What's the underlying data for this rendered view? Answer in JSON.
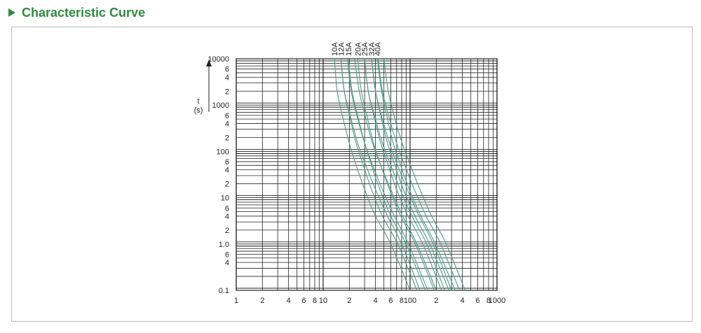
{
  "header": {
    "title": "Characteristic Curve"
  },
  "colors": {
    "accent": "#2e8b3e",
    "curve": "#4a9e86",
    "grid": "#222222"
  },
  "chart_data": {
    "type": "line",
    "xscale": "log",
    "yscale": "log",
    "xlim": [
      1,
      1000
    ],
    "ylim": [
      0.1,
      10000
    ],
    "ylabel": "t",
    "ylabel_unit": "(s)",
    "grid": true,
    "x_tick_labels": [
      {
        "v": 1,
        "t": "1"
      },
      {
        "v": 2,
        "t": "2"
      },
      {
        "v": 4,
        "t": "4"
      },
      {
        "v": 6,
        "t": "6"
      },
      {
        "v": 8,
        "t": "8"
      },
      {
        "v": 10,
        "t": "10"
      },
      {
        "v": 20,
        "t": "2"
      },
      {
        "v": 40,
        "t": "4"
      },
      {
        "v": 60,
        "t": "6"
      },
      {
        "v": 80,
        "t": "8"
      },
      {
        "v": 100,
        "t": "100"
      },
      {
        "v": 200,
        "t": "2"
      },
      {
        "v": 400,
        "t": "4"
      },
      {
        "v": 600,
        "t": "6"
      },
      {
        "v": 800,
        "t": "8"
      },
      {
        "v": 1000,
        "t": "1000"
      }
    ],
    "y_tick_labels": [
      {
        "v": 10000,
        "t": "10000"
      },
      {
        "v": 6000,
        "t": "6"
      },
      {
        "v": 4000,
        "t": "4"
      },
      {
        "v": 2000,
        "t": "2"
      },
      {
        "v": 1000,
        "t": "1000"
      },
      {
        "v": 600,
        "t": "6"
      },
      {
        "v": 400,
        "t": "4"
      },
      {
        "v": 200,
        "t": "2"
      },
      {
        "v": 100,
        "t": "100"
      },
      {
        "v": 60,
        "t": "6"
      },
      {
        "v": 40,
        "t": "4"
      },
      {
        "v": 20,
        "t": "2"
      },
      {
        "v": 10,
        "t": "10"
      },
      {
        "v": 6,
        "t": "6"
      },
      {
        "v": 4,
        "t": "4"
      },
      {
        "v": 2,
        "t": "2"
      },
      {
        "v": 1,
        "t": "1.0"
      },
      {
        "v": 0.6,
        "t": "6"
      },
      {
        "v": 0.4,
        "t": "4"
      },
      {
        "v": 0.1,
        "t": "0.1"
      }
    ],
    "series": [
      {
        "name": "10A",
        "bands": [
          {
            "x": [
              13.5,
              14.5,
              17,
              20,
              24,
              30,
              40,
              60,
              100
            ],
            "y": [
              10000,
              2000,
              500,
              150,
              50,
              15,
              4,
              1,
              0.1
            ]
          },
          {
            "x": [
              16,
              17.5,
              21,
              25,
              31,
              40,
              55,
              80,
              130
            ],
            "y": [
              10000,
              2000,
              500,
              150,
              50,
              15,
              4,
              1,
              0.1
            ]
          }
        ]
      },
      {
        "name": "12A",
        "bands": [
          {
            "x": [
              16,
              17.5,
              20.5,
              24,
              29,
              36,
              48,
              72,
              120
            ],
            "y": [
              10000,
              2000,
              500,
              150,
              50,
              15,
              4,
              1,
              0.1
            ]
          },
          {
            "x": [
              19,
              21,
              25,
              30,
              37,
              48,
              66,
              96,
              160
            ],
            "y": [
              10000,
              2000,
              500,
              150,
              50,
              15,
              4,
              1,
              0.1
            ]
          }
        ]
      },
      {
        "name": "15A",
        "bands": [
          {
            "x": [
              19.5,
              21.5,
              25.5,
              30,
              36,
              45,
              60,
              90,
              150
            ],
            "y": [
              10000,
              2000,
              500,
              150,
              50,
              15,
              4,
              1,
              0.1
            ]
          },
          {
            "x": [
              23,
              26,
              31,
              37,
              46,
              60,
              82,
              120,
              200
            ],
            "y": [
              10000,
              2000,
              500,
              150,
              50,
              15,
              4,
              1,
              0.1
            ]
          }
        ]
      },
      {
        "name": "20A",
        "bands": [
          {
            "x": [
              25,
              27.5,
              32.5,
              38,
              46,
              58,
              78,
              115,
              190
            ],
            "y": [
              10000,
              2000,
              500,
              150,
              50,
              15,
              4,
              1,
              0.1
            ]
          },
          {
            "x": [
              30,
              33,
              40,
              48,
              60,
              77,
              105,
              155,
              250
            ],
            "y": [
              10000,
              2000,
              500,
              150,
              50,
              15,
              4,
              1,
              0.1
            ]
          }
        ]
      },
      {
        "name": "25A",
        "bands": [
          {
            "x": [
              30,
              33,
              39,
              46,
              56,
              70,
              95,
              140,
              230
            ],
            "y": [
              10000,
              2000,
              500,
              150,
              50,
              15,
              4,
              1,
              0.1
            ]
          },
          {
            "x": [
              36,
              40,
              48,
              58,
              72,
              93,
              127,
              185,
              300
            ],
            "y": [
              10000,
              2000,
              500,
              150,
              50,
              15,
              4,
              1,
              0.1
            ]
          }
        ]
      },
      {
        "name": "32A",
        "bands": [
          {
            "x": [
              36,
              40,
              47,
              55,
              67,
              84,
              114,
              168,
              280
            ],
            "y": [
              10000,
              2000,
              500,
              150,
              50,
              15,
              4,
              1,
              0.1
            ]
          },
          {
            "x": [
              43,
              48,
              58,
              70,
              87,
              112,
              153,
              225,
              370
            ],
            "y": [
              10000,
              2000,
              500,
              150,
              50,
              15,
              4,
              1,
              0.1
            ]
          }
        ]
      },
      {
        "name": "40A",
        "bands": [
          {
            "x": [
              42,
              47,
              55,
              64,
              78,
              98,
              133,
              195,
              330
            ],
            "y": [
              10000,
              2000,
              500,
              150,
              50,
              15,
              4,
              1,
              0.1
            ]
          },
          {
            "x": [
              50,
              56,
              67,
              81,
              101,
              130,
              177,
              260,
              430
            ],
            "y": [
              10000,
              2000,
              500,
              150,
              50,
              15,
              4,
              1,
              0.1
            ]
          }
        ]
      }
    ]
  }
}
